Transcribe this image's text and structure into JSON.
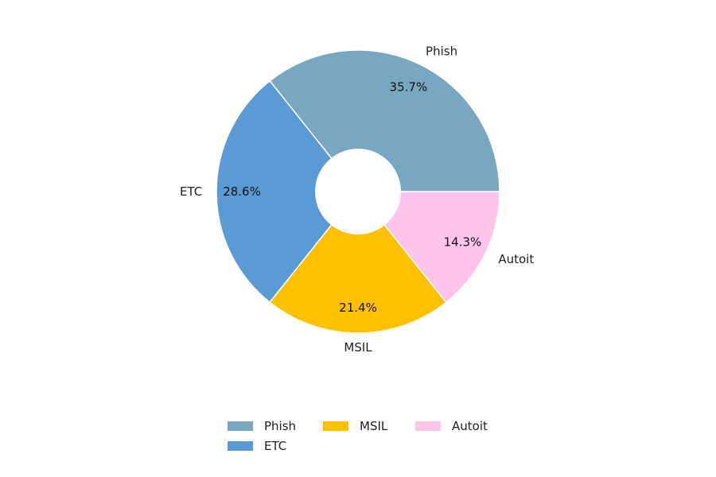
{
  "chart_data": {
    "type": "pie",
    "donut": true,
    "start_angle_deg": 0,
    "direction": "counterclockwise",
    "slices": [
      {
        "name": "Phish",
        "value": 35.7,
        "label": "35.7%",
        "color": "#79a6c0"
      },
      {
        "name": "ETC",
        "value": 28.6,
        "label": "28.6%",
        "color": "#5b9bd5"
      },
      {
        "name": "MSIL",
        "value": 21.4,
        "label": "21.4%",
        "color": "#ffc000"
      },
      {
        "name": "Autoit",
        "value": 14.3,
        "label": "14.3%",
        "color": "#ffc4ec"
      }
    ],
    "legend": {
      "placement": "bottom-center",
      "entries": [
        {
          "name": "Phish",
          "color": "#79a6c0"
        },
        {
          "name": "MSIL",
          "color": "#ffc000"
        },
        {
          "name": "Autoit",
          "color": "#ffc4ec"
        },
        {
          "name": "ETC",
          "color": "#5b9bd5"
        }
      ]
    }
  }
}
